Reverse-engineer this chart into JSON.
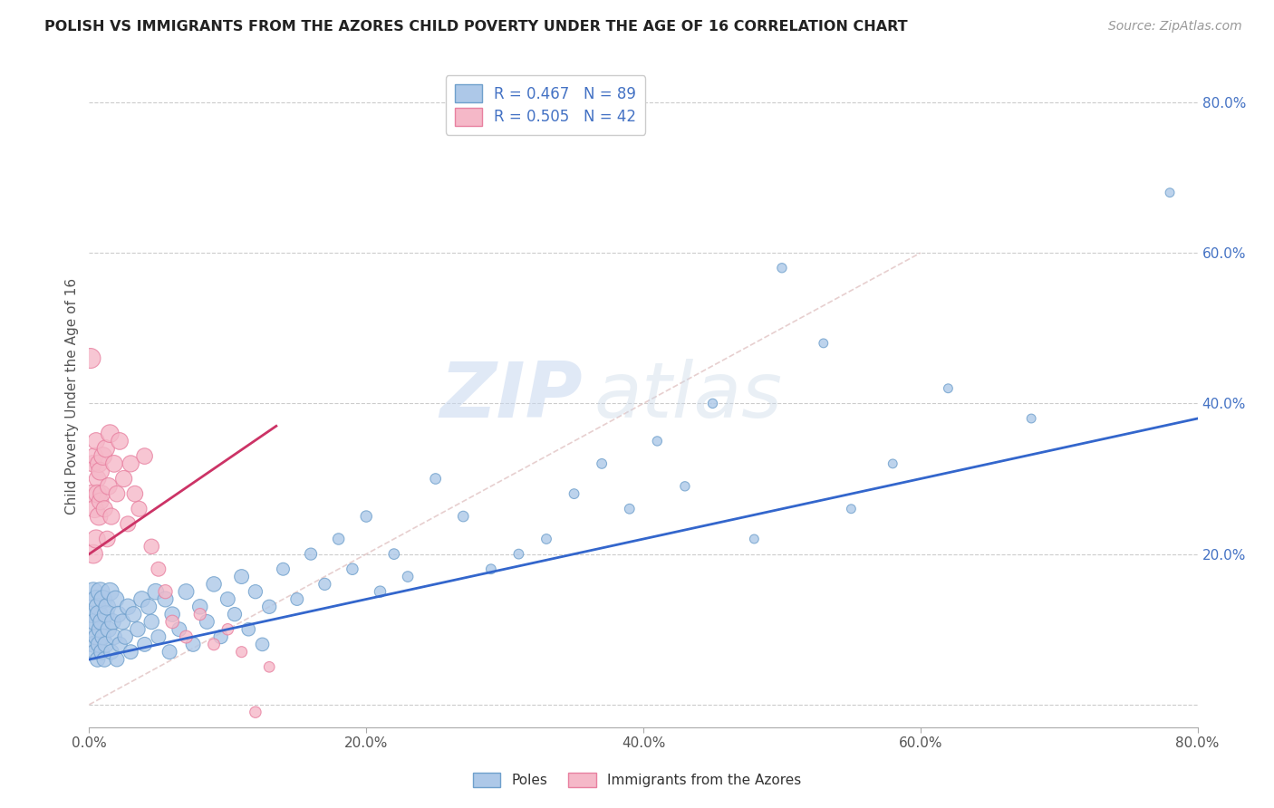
{
  "title": "POLISH VS IMMIGRANTS FROM THE AZORES CHILD POVERTY UNDER THE AGE OF 16 CORRELATION CHART",
  "source": "Source: ZipAtlas.com",
  "ylabel": "Child Poverty Under the Age of 16",
  "xlim": [
    0.0,
    0.8
  ],
  "ylim": [
    -0.03,
    0.85
  ],
  "xtick_vals": [
    0.0,
    0.2,
    0.4,
    0.6,
    0.8
  ],
  "ytick_vals": [
    0.0,
    0.2,
    0.4,
    0.6,
    0.8
  ],
  "blue_R": 0.467,
  "blue_N": 89,
  "pink_R": 0.505,
  "pink_N": 42,
  "blue_color": "#adc8e8",
  "blue_edge": "#6fa0cc",
  "pink_color": "#f5b8c8",
  "pink_edge": "#e880a0",
  "blue_line_color": "#3366cc",
  "pink_line_color": "#cc3366",
  "diag_line_color": "#ddbbbb",
  "watermark_zip": "ZIP",
  "watermark_atlas": "atlas",
  "legend_label_blue": "Poles",
  "legend_label_pink": "Immigrants from the Azores",
  "blue_x": [
    0.001,
    0.002,
    0.003,
    0.003,
    0.004,
    0.004,
    0.005,
    0.005,
    0.006,
    0.006,
    0.007,
    0.007,
    0.008,
    0.008,
    0.009,
    0.009,
    0.01,
    0.01,
    0.011,
    0.012,
    0.012,
    0.013,
    0.014,
    0.015,
    0.016,
    0.017,
    0.018,
    0.019,
    0.02,
    0.021,
    0.022,
    0.024,
    0.026,
    0.028,
    0.03,
    0.032,
    0.035,
    0.038,
    0.04,
    0.043,
    0.045,
    0.048,
    0.05,
    0.055,
    0.058,
    0.06,
    0.065,
    0.07,
    0.075,
    0.08,
    0.085,
    0.09,
    0.095,
    0.1,
    0.105,
    0.11,
    0.115,
    0.12,
    0.125,
    0.13,
    0.14,
    0.15,
    0.16,
    0.17,
    0.18,
    0.19,
    0.2,
    0.21,
    0.22,
    0.23,
    0.25,
    0.27,
    0.29,
    0.31,
    0.33,
    0.35,
    0.37,
    0.39,
    0.41,
    0.43,
    0.45,
    0.48,
    0.5,
    0.53,
    0.55,
    0.58,
    0.62,
    0.68,
    0.78
  ],
  "blue_y": [
    0.1,
    0.12,
    0.08,
    0.15,
    0.07,
    0.11,
    0.09,
    0.14,
    0.06,
    0.13,
    0.08,
    0.12,
    0.1,
    0.15,
    0.07,
    0.11,
    0.09,
    0.14,
    0.06,
    0.12,
    0.08,
    0.13,
    0.1,
    0.15,
    0.07,
    0.11,
    0.09,
    0.14,
    0.06,
    0.12,
    0.08,
    0.11,
    0.09,
    0.13,
    0.07,
    0.12,
    0.1,
    0.14,
    0.08,
    0.13,
    0.11,
    0.15,
    0.09,
    0.14,
    0.07,
    0.12,
    0.1,
    0.15,
    0.08,
    0.13,
    0.11,
    0.16,
    0.09,
    0.14,
    0.12,
    0.17,
    0.1,
    0.15,
    0.08,
    0.13,
    0.18,
    0.14,
    0.2,
    0.16,
    0.22,
    0.18,
    0.25,
    0.15,
    0.2,
    0.17,
    0.3,
    0.25,
    0.18,
    0.2,
    0.22,
    0.28,
    0.32,
    0.26,
    0.35,
    0.29,
    0.4,
    0.22,
    0.58,
    0.48,
    0.26,
    0.32,
    0.42,
    0.38,
    0.68
  ],
  "blue_sz": [
    200,
    180,
    160,
    220,
    150,
    180,
    160,
    200,
    140,
    180,
    160,
    200,
    180,
    220,
    150,
    180,
    160,
    200,
    140,
    180,
    160,
    180,
    160,
    200,
    140,
    160,
    150,
    180,
    130,
    160,
    140,
    150,
    140,
    160,
    130,
    150,
    140,
    160,
    130,
    150,
    140,
    160,
    130,
    150,
    130,
    140,
    130,
    150,
    130,
    140,
    130,
    140,
    120,
    130,
    120,
    130,
    110,
    120,
    110,
    120,
    100,
    100,
    90,
    90,
    80,
    80,
    80,
    80,
    70,
    70,
    70,
    70,
    60,
    60,
    60,
    60,
    60,
    60,
    55,
    55,
    55,
    50,
    55,
    50,
    50,
    50,
    50,
    50,
    50
  ],
  "pink_x": [
    0.001,
    0.002,
    0.003,
    0.003,
    0.004,
    0.004,
    0.005,
    0.005,
    0.006,
    0.006,
    0.007,
    0.007,
    0.008,
    0.008,
    0.009,
    0.01,
    0.011,
    0.012,
    0.013,
    0.014,
    0.015,
    0.016,
    0.018,
    0.02,
    0.022,
    0.025,
    0.028,
    0.03,
    0.033,
    0.036,
    0.04,
    0.045,
    0.05,
    0.055,
    0.06,
    0.07,
    0.08,
    0.09,
    0.1,
    0.11,
    0.12,
    0.13
  ],
  "pink_y": [
    0.46,
    0.28,
    0.32,
    0.2,
    0.33,
    0.26,
    0.35,
    0.22,
    0.3,
    0.28,
    0.32,
    0.25,
    0.27,
    0.31,
    0.28,
    0.33,
    0.26,
    0.34,
    0.22,
    0.29,
    0.36,
    0.25,
    0.32,
    0.28,
    0.35,
    0.3,
    0.24,
    0.32,
    0.28,
    0.26,
    0.33,
    0.21,
    0.18,
    0.15,
    0.11,
    0.09,
    0.12,
    0.08,
    0.1,
    0.07,
    -0.01,
    0.05
  ],
  "pink_sz": [
    250,
    200,
    180,
    220,
    180,
    200,
    180,
    210,
    180,
    200,
    190,
    200,
    180,
    200,
    180,
    200,
    170,
    190,
    160,
    180,
    200,
    170,
    180,
    160,
    180,
    170,
    150,
    170,
    160,
    150,
    160,
    140,
    130,
    120,
    110,
    100,
    90,
    85,
    80,
    75,
    80,
    70
  ],
  "blue_line_x": [
    0.0,
    0.8
  ],
  "blue_line_y": [
    0.06,
    0.38
  ],
  "pink_line_x": [
    0.0,
    0.135
  ],
  "pink_line_y": [
    0.2,
    0.37
  ],
  "diag_line_x": [
    0.0,
    0.6
  ],
  "diag_line_y": [
    0.0,
    0.6
  ]
}
